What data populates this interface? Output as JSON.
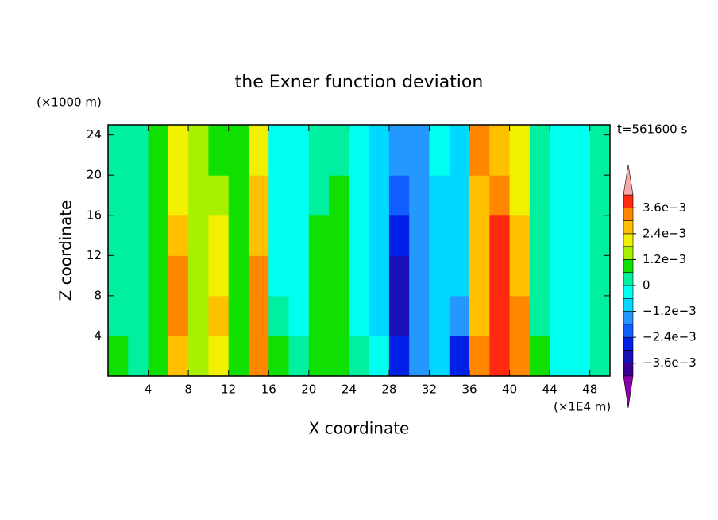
{
  "chart_data": {
    "type": "contour",
    "title": "the Exner function deviation",
    "y_unit_label": "(×1000 m)",
    "x_unit_label": "(×1E4 m)",
    "time_label": "t=561600 s",
    "xlabel": "X coordinate",
    "ylabel": "Z coordinate",
    "xlim": [
      0,
      50
    ],
    "ylim": [
      0,
      25
    ],
    "xticks": [
      4,
      8,
      12,
      16,
      20,
      24,
      28,
      32,
      36,
      40,
      44,
      48
    ],
    "yticks": [
      4,
      8,
      12,
      16,
      20,
      24
    ],
    "x": [
      1,
      3,
      5,
      7,
      9,
      11,
      13,
      15,
      17,
      19,
      21,
      23,
      25,
      27,
      29,
      31,
      33,
      35,
      37,
      39,
      41,
      43,
      45,
      47,
      49
    ],
    "y": [
      2,
      6,
      10,
      14,
      18,
      22
    ],
    "field": [
      [
        0.0009,
        0.0003,
        0.0009,
        0.0027,
        0.0015,
        0.0021,
        0.0009,
        0.0033,
        0.0009,
        0.0003,
        0.0009,
        0.0009,
        0.0003,
        -0.0003,
        -0.0027,
        -0.0015,
        -0.0009,
        -0.0027,
        0.0033,
        0.0039,
        0.0033,
        0.0009,
        -0.0003,
        -0.0003,
        0.0003
      ],
      [
        0.0003,
        0.0003,
        0.0009,
        0.0033,
        0.0015,
        0.0027,
        0.0009,
        0.0033,
        0.0003,
        -0.0003,
        0.0009,
        0.0009,
        -0.0003,
        -0.0009,
        -0.0033,
        -0.0015,
        -0.0009,
        -0.0015,
        0.0027,
        0.0039,
        0.0033,
        0.0003,
        -0.0003,
        -0.0003,
        0.0003
      ],
      [
        0.0003,
        0.0003,
        0.0009,
        0.0033,
        0.0015,
        0.0021,
        0.0009,
        0.0033,
        -0.0003,
        -0.0003,
        0.0009,
        0.0009,
        -0.0003,
        -0.0009,
        -0.0033,
        -0.0015,
        -0.0009,
        -0.0009,
        0.0027,
        0.0039,
        0.0027,
        0.0003,
        -0.0003,
        -0.0003,
        0.0003
      ],
      [
        0.0003,
        0.0003,
        0.0009,
        0.0027,
        0.0015,
        0.0021,
        0.0009,
        0.0027,
        -0.0003,
        -0.0003,
        0.0009,
        0.0009,
        -0.0003,
        -0.0009,
        -0.0027,
        -0.0015,
        -0.0009,
        -0.0009,
        0.0027,
        0.0039,
        0.0027,
        0.0003,
        -0.0003,
        -0.0003,
        0.0003
      ],
      [
        0.0003,
        0.0003,
        0.0009,
        0.0021,
        0.0015,
        0.0015,
        0.0009,
        0.0027,
        -0.0003,
        -0.0003,
        0.0003,
        0.0009,
        -0.0003,
        -0.0009,
        -0.0021,
        -0.0015,
        -0.0009,
        -0.0009,
        0.0027,
        0.0033,
        0.0021,
        0.0003,
        -0.0003,
        -0.0003,
        0.0003
      ],
      [
        0.0003,
        0.0003,
        0.0009,
        0.0021,
        0.0015,
        0.0009,
        0.0009,
        0.0021,
        -0.0003,
        -0.0003,
        0.0003,
        0.0003,
        -0.0003,
        -0.0009,
        -0.0015,
        -0.0015,
        -0.0003,
        -0.0009,
        0.0033,
        0.0027,
        0.0021,
        0.0003,
        -0.0003,
        -0.0003,
        0.0003
      ]
    ],
    "levels": [
      -0.0042,
      -0.0036,
      -0.003,
      -0.0024,
      -0.0018,
      -0.0012,
      -0.0006,
      0,
      0.0006,
      0.0012,
      0.0018,
      0.0024,
      0.003,
      0.0036,
      0.0042
    ],
    "colors": [
      "#8a00a8",
      "#3c0090",
      "#1a10b8",
      "#0020e8",
      "#1060ff",
      "#2498ff",
      "#00d8ff",
      "#00ffee",
      "#00f0a0",
      "#10e000",
      "#a8f000",
      "#f0f000",
      "#ffc000",
      "#ff8800",
      "#ff2a10",
      "#f8a8a8"
    ],
    "cbar_ticks": [
      {
        "value": 0.0036,
        "label": "3.6e−3"
      },
      {
        "value": 0.0024,
        "label": "2.4e−3"
      },
      {
        "value": 0.0012,
        "label": "1.2e−3"
      },
      0,
      {
        "value": -0.0012,
        "label": "−1.2e−3"
      },
      {
        "value": -0.0024,
        "label": "−2.4e−3"
      },
      {
        "value": -0.0036,
        "label": "−3.6e−3"
      }
    ]
  }
}
